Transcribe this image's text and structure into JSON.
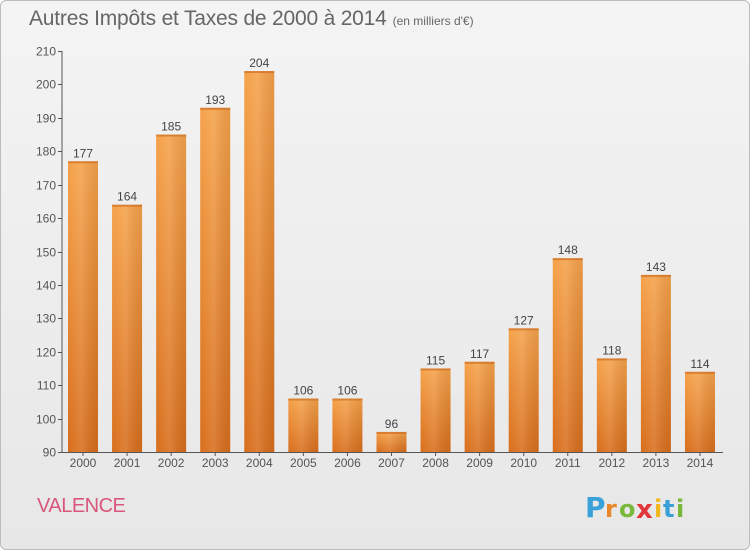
{
  "header": {
    "title": "Autres Impôts et Taxes de 2000 à 2014",
    "subtitle": "(en milliers d'€)"
  },
  "footer": {
    "location": "VALENCE",
    "logo_text": "Proxiti"
  },
  "colors": {
    "bar_top": "#f5a24a",
    "bar_bottom": "#d86e1c",
    "location_text": "#d9577a"
  },
  "chart_data": {
    "type": "bar",
    "categories": [
      "2000",
      "2001",
      "2002",
      "2003",
      "2004",
      "2005",
      "2006",
      "2007",
      "2008",
      "2009",
      "2010",
      "2011",
      "2012",
      "2013",
      "2014"
    ],
    "values": [
      177,
      164,
      185,
      193,
      204,
      106,
      106,
      96,
      115,
      117,
      127,
      148,
      118,
      143,
      114
    ],
    "ylim": [
      90,
      210
    ],
    "yticks": [
      90,
      100,
      110,
      120,
      130,
      140,
      150,
      160,
      170,
      180,
      190,
      200,
      210
    ],
    "grid": false,
    "legend": "none"
  }
}
